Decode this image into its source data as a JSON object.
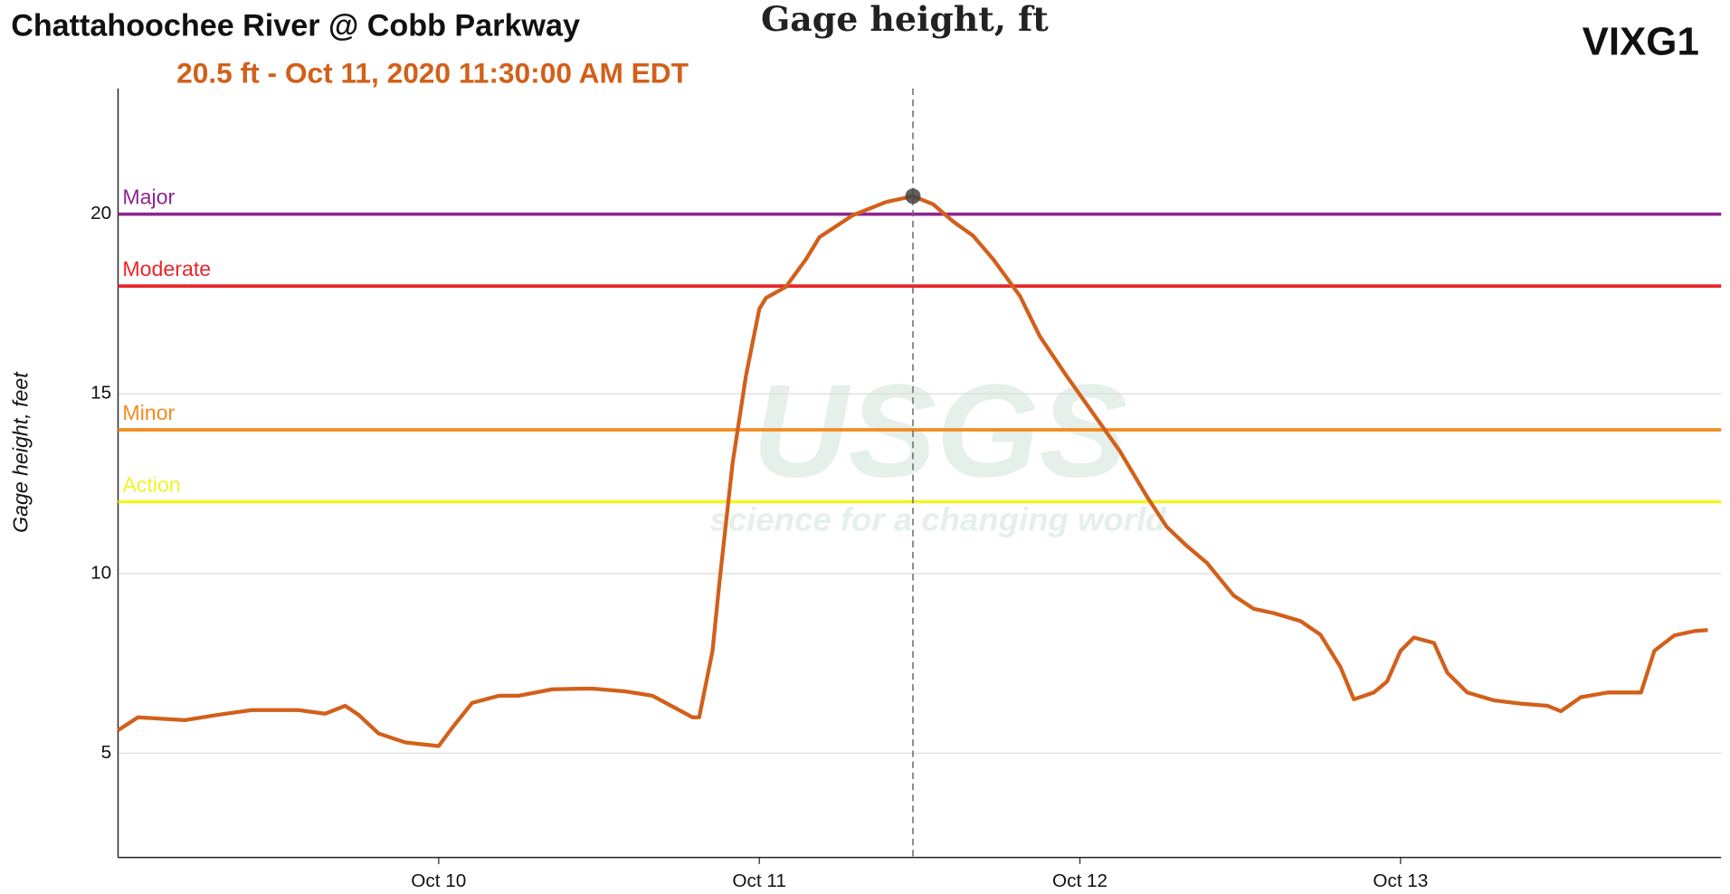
{
  "chart_data": {
    "type": "line",
    "title": "Chattahoochee River @ Cobb Parkway",
    "subtitle": "Gage height, ft",
    "site_code": "VIXG1",
    "y_label": "Gage height, feet",
    "watermark": {
      "logo": "USGS",
      "tagline": "science for a changing world"
    },
    "highlight": {
      "x": "2020-10-11T11:30",
      "value": 20.5,
      "label": "20.5 ft - Oct 11, 2020 11:30:00 AM EDT",
      "color": "#d2601a"
    },
    "xlim": [
      "2020-10-09T00:00",
      "2020-10-14T00:00"
    ],
    "xticks": [
      {
        "value": "2020-10-10T00:00",
        "label": "Oct 10"
      },
      {
        "value": "2020-10-11T00:00",
        "label": "Oct 11"
      },
      {
        "value": "2020-10-12T00:00",
        "label": "Oct 12"
      },
      {
        "value": "2020-10-13T00:00",
        "label": "Oct 13"
      }
    ],
    "ylim": [
      2.1,
      23.5
    ],
    "yticks": [
      5,
      10,
      15,
      20
    ],
    "grid": true,
    "thresholds": [
      {
        "name": "Major",
        "value": 20,
        "color": "#8e2491"
      },
      {
        "name": "Moderate",
        "value": 18,
        "color": "#e8262a"
      },
      {
        "name": "Minor",
        "value": 14,
        "color": "#f08c22"
      },
      {
        "name": "Action",
        "value": 12,
        "color": "#f2f22a"
      }
    ],
    "x": [
      "2020-10-09T00:00",
      "2020-10-09T01:30",
      "2020-10-09T05:00",
      "2020-10-09T07:30",
      "2020-10-09T10:00",
      "2020-10-09T13:30",
      "2020-10-09T15:30",
      "2020-10-09T17:00",
      "2020-10-09T18:00",
      "2020-10-09T19:30",
      "2020-10-09T21:30",
      "2020-10-10T00:00",
      "2020-10-10T01:00",
      "2020-10-10T02:30",
      "2020-10-10T04:30",
      "2020-10-10T06:00",
      "2020-10-10T08:30",
      "2020-10-10T11:30",
      "2020-10-10T14:00",
      "2020-10-10T16:00",
      "2020-10-10T17:30",
      "2020-10-10T19:00",
      "2020-10-10T19:30",
      "2020-10-10T20:30",
      "2020-10-10T21:00",
      "2020-10-10T22:00",
      "2020-10-10T23:00",
      "2020-10-11T00:00",
      "2020-10-11T00:30",
      "2020-10-11T02:00",
      "2020-10-11T03:30",
      "2020-10-11T04:30",
      "2020-10-11T07:00",
      "2020-10-11T09:30",
      "2020-10-11T11:30",
      "2020-10-11T13:00",
      "2020-10-11T14:30",
      "2020-10-11T16:00",
      "2020-10-11T17:30",
      "2020-10-11T19:30",
      "2020-10-11T21:00",
      "2020-10-11T23:00",
      "2020-10-12T01:00",
      "2020-10-12T03:00",
      "2020-10-12T05:00",
      "2020-10-12T06:30",
      "2020-10-12T08:00",
      "2020-10-12T09:30",
      "2020-10-12T11:30",
      "2020-10-12T13:00",
      "2020-10-12T14:30",
      "2020-10-12T16:30",
      "2020-10-12T18:00",
      "2020-10-12T19:30",
      "2020-10-12T20:30",
      "2020-10-12T22:00",
      "2020-10-12T23:00",
      "2020-10-13T00:00",
      "2020-10-13T01:00",
      "2020-10-13T02:30",
      "2020-10-13T03:30",
      "2020-10-13T05:00",
      "2020-10-13T07:00",
      "2020-10-13T09:00",
      "2020-10-13T11:00",
      "2020-10-13T12:00",
      "2020-10-13T13:30",
      "2020-10-13T15:30",
      "2020-10-13T18:00",
      "2020-10-13T19:00",
      "2020-10-13T20:30",
      "2020-10-13T22:00",
      "2020-10-13T23:00"
    ],
    "series": [
      {
        "name": "Gage height",
        "color": "#d2601a",
        "values": [
          5.64,
          6.0,
          5.92,
          6.07,
          6.2,
          6.2,
          6.1,
          6.32,
          6.07,
          5.55,
          5.3,
          5.2,
          5.7,
          6.4,
          6.6,
          6.6,
          6.78,
          6.8,
          6.72,
          6.6,
          6.3,
          6.0,
          6.0,
          7.85,
          9.7,
          13.07,
          15.5,
          17.36,
          17.67,
          17.98,
          18.75,
          19.36,
          19.97,
          20.34,
          20.5,
          20.28,
          19.8,
          19.4,
          18.75,
          17.73,
          16.6,
          15.5,
          14.45,
          13.4,
          12.15,
          11.3,
          10.77,
          10.3,
          9.39,
          9.02,
          8.9,
          8.68,
          8.3,
          7.4,
          6.5,
          6.69,
          7.0,
          7.85,
          8.22,
          8.07,
          7.24,
          6.69,
          6.47,
          6.38,
          6.32,
          6.17,
          6.56,
          6.69,
          6.69,
          7.85,
          8.28,
          8.4,
          8.43
        ]
      }
    ]
  }
}
